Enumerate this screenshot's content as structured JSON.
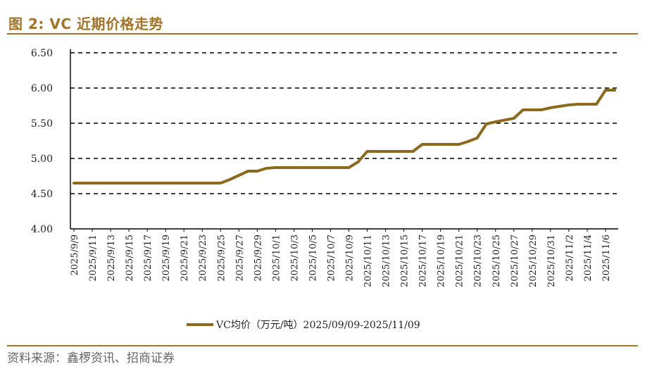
{
  "figure": {
    "title": "图 2:  VC 近期价格走势",
    "source": "资料来源：鑫椤资讯、招商证券",
    "accent_color": "#a2742a",
    "line_color": "#8b6a1e"
  },
  "chart_data": {
    "type": "line",
    "title": "",
    "xlabel": "",
    "ylabel": "",
    "ylim": [
      4.0,
      6.5
    ],
    "yticks": [
      "4.00",
      "4.50",
      "5.00",
      "5.50",
      "6.00",
      "6.50"
    ],
    "grid": "dashed-horizontal",
    "legend_position": "bottom-center",
    "categories": [
      "2025/9/9",
      "2025/9/11",
      "2025/9/13",
      "2025/9/15",
      "2025/9/17",
      "2025/9/19",
      "2025/9/21",
      "2025/9/23",
      "2025/9/25",
      "2025/9/27",
      "2025/9/29",
      "2025/10/1",
      "2025/10/3",
      "2025/10/5",
      "2025/10/7",
      "2025/10/9",
      "2025/10/11",
      "2025/10/13",
      "2025/10/15",
      "2025/10/17",
      "2025/10/19",
      "2025/10/21",
      "2025/10/23",
      "2025/10/25",
      "2025/10/27",
      "2025/10/29",
      "2025/10/31",
      "2025/11/2",
      "2025/11/4",
      "2025/11/6"
    ],
    "series": [
      {
        "name": "VC均价（万元/吨）2025/09/09-2025/11/09",
        "x": [
          "2025/9/9",
          "2025/9/11",
          "2025/9/13",
          "2025/9/15",
          "2025/9/17",
          "2025/9/19",
          "2025/9/21",
          "2025/9/23",
          "2025/9/25",
          "2025/9/26",
          "2025/9/27",
          "2025/9/28",
          "2025/9/29",
          "2025/9/30",
          "2025/10/1",
          "2025/10/3",
          "2025/10/5",
          "2025/10/7",
          "2025/10/9",
          "2025/10/10",
          "2025/10/11",
          "2025/10/13",
          "2025/10/15",
          "2025/10/16",
          "2025/10/17",
          "2025/10/19",
          "2025/10/21",
          "2025/10/22",
          "2025/10/23",
          "2025/10/24",
          "2025/10/25",
          "2025/10/27",
          "2025/10/28",
          "2025/10/29",
          "2025/10/30",
          "2025/10/31",
          "2025/11/2",
          "2025/11/3",
          "2025/11/4",
          "2025/11/5",
          "2025/11/6",
          "2025/11/7"
        ],
        "values": [
          4.65,
          4.65,
          4.65,
          4.65,
          4.65,
          4.65,
          4.65,
          4.65,
          4.65,
          4.7,
          4.76,
          4.82,
          4.82,
          4.86,
          4.87,
          4.87,
          4.87,
          4.87,
          4.87,
          4.95,
          5.1,
          5.1,
          5.1,
          5.1,
          5.2,
          5.2,
          5.2,
          5.24,
          5.29,
          5.49,
          5.52,
          5.57,
          5.69,
          5.69,
          5.69,
          5.72,
          5.76,
          5.77,
          5.77,
          5.77,
          5.97,
          5.97
        ]
      }
    ]
  }
}
